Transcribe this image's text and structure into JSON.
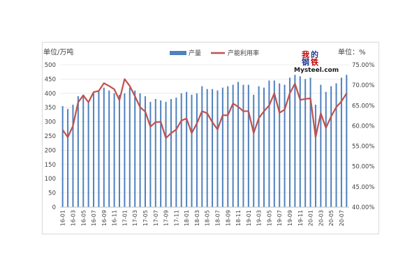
{
  "chart_data": {
    "type": "bar+line",
    "left_unit_label": "单位/万吨",
    "right_unit_label": "单位：%",
    "left_axis": {
      "min": 0,
      "max": 500,
      "step": 50
    },
    "right_axis": {
      "min": 40,
      "max": 75,
      "step": 5,
      "suffix": "%"
    },
    "legend_position": "top",
    "grid": true,
    "watermark": "我的钢铁 Mysteel.com",
    "colors": {
      "bars": "#4f81bd",
      "line": "#c0504d",
      "axis": "#bfbfbf",
      "text": "#404040"
    },
    "x": [
      "16-01",
      "16-02",
      "16-03",
      "16-04",
      "16-05",
      "16-06",
      "16-07",
      "16-08",
      "16-09",
      "16-10",
      "16-11",
      "16-12",
      "17-01",
      "17-02",
      "17-03",
      "17-04",
      "17-05",
      "17-06",
      "17-07",
      "17-08",
      "17-09",
      "17-10",
      "17-11",
      "17-12",
      "18-01",
      "18-02",
      "18-03",
      "18-04",
      "18-05",
      "18-06",
      "18-07",
      "18-08",
      "18-09",
      "18-10",
      "18-11",
      "18-12",
      "19-01",
      "19-02",
      "19-03",
      "19-04",
      "19-05",
      "19-06",
      "19-07",
      "19-08",
      "19-09",
      "19-10",
      "19-11",
      "19-12",
      "20-01",
      "20-02",
      "20-03",
      "20-04",
      "20-05",
      "20-06",
      "20-07",
      "20-08"
    ],
    "x_tick_labels": [
      "16-01",
      "16-03",
      "16-05",
      "16-07",
      "16-09",
      "16-11",
      "17-01",
      "17-03",
      "17-05",
      "17-07",
      "17-09",
      "17-11",
      "18-01",
      "18-03",
      "18-05",
      "18-07",
      "18-09",
      "18-11",
      "19-01",
      "19-03",
      "19-05",
      "19-07",
      "19-09",
      "19-11",
      "20-01",
      "20-03",
      "20-05",
      "20-07"
    ],
    "series": [
      {
        "name": "产量",
        "type": "bar",
        "axis": "left",
        "values": [
          355,
          345,
          360,
          390,
          395,
          370,
          400,
          410,
          420,
          410,
          400,
          395,
          400,
          420,
          410,
          400,
          390,
          370,
          380,
          375,
          370,
          380,
          385,
          400,
          405,
          395,
          400,
          425,
          415,
          415,
          410,
          420,
          425,
          430,
          440,
          430,
          430,
          395,
          425,
          420,
          445,
          445,
          435,
          430,
          455,
          465,
          460,
          450,
          455,
          360,
          430,
          405,
          425,
          435,
          455,
          465
        ]
      },
      {
        "name": "产能利用率",
        "type": "line",
        "axis": "right",
        "values": [
          59.0,
          57.2,
          60.0,
          65.8,
          67.5,
          65.8,
          68.3,
          68.6,
          70.5,
          69.8,
          69.0,
          66.3,
          71.5,
          69.8,
          67.3,
          64.6,
          63.5,
          59.8,
          60.9,
          61.0,
          57.0,
          58.2,
          59.1,
          61.3,
          61.8,
          58.2,
          60.6,
          63.6,
          63.1,
          60.9,
          59.1,
          62.6,
          62.6,
          65.5,
          64.7,
          63.6,
          63.6,
          58.2,
          61.9,
          63.6,
          65.0,
          68.0,
          63.2,
          64.0,
          68.0,
          70.4,
          66.4,
          66.6,
          66.8,
          57.2,
          63.1,
          59.5,
          62.3,
          64.6,
          66.0,
          68.0
        ]
      }
    ]
  }
}
